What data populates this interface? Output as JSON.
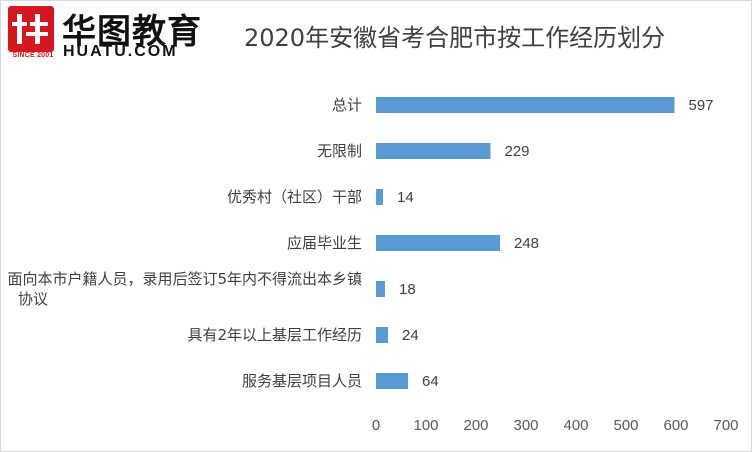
{
  "logo": {
    "name": "华图教育",
    "domain": "HUATU.COM",
    "since": "SINCE 2001"
  },
  "chart_data": {
    "type": "bar",
    "orientation": "horizontal",
    "title": "2020年安徽省考合肥市按工作经历划分",
    "categories": [
      "总计",
      "无限制",
      "优秀村（社区）干部",
      "应届毕业生",
      "面向本市户籍人员，录用后签订5年内不得流出本乡镇协议",
      "具有2年以上基层工作经历",
      "服务基层项目人员"
    ],
    "values": [
      597,
      229,
      14,
      248,
      18,
      24,
      64
    ],
    "xlim": [
      0,
      700
    ],
    "ticks": [
      "0",
      "100",
      "200",
      "300",
      "400",
      "500",
      "600",
      "700"
    ],
    "grid": false,
    "legend": "none",
    "bar_color": "#5b9bd5"
  }
}
